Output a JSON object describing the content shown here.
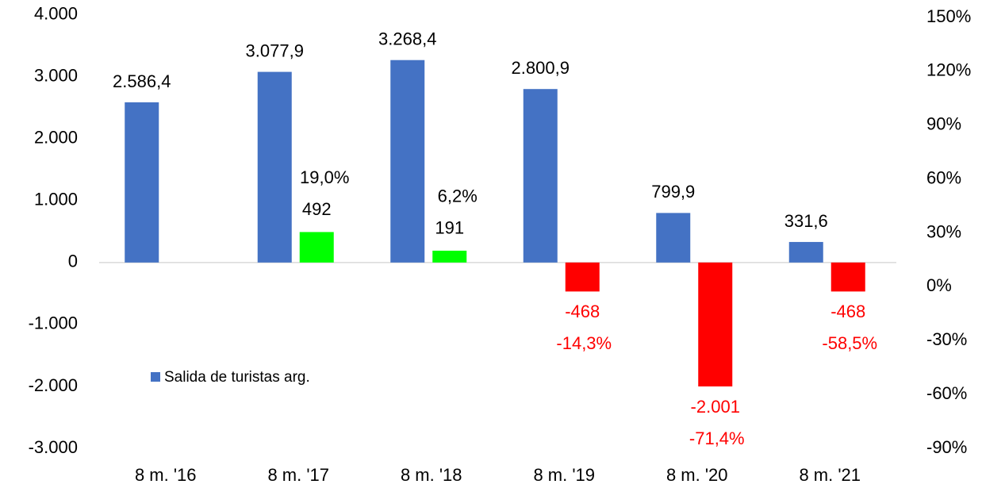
{
  "chart_data": {
    "type": "bar",
    "categories": [
      "8 m. '16",
      "8 m. '17",
      "8 m. '18",
      "8 m. '19",
      "8 m. '20",
      "8 m. '21"
    ],
    "series": [
      {
        "name": "Salida de turistas arg.",
        "color": "#4472c4",
        "values": [
          2586.4,
          3077.9,
          3268.4,
          2800.9,
          799.9,
          331.6
        ],
        "value_labels": [
          "2.586,4",
          "3.077,9",
          "3.268,4",
          "2.800,9",
          "799,9",
          "331,6"
        ]
      },
      {
        "colors": [
          null,
          "#00ff00",
          "#00ff00",
          "#ff0000",
          "#ff0000",
          "#ff0000"
        ],
        "values": [
          null,
          492,
          191,
          -468,
          -2001,
          -468
        ],
        "value_labels": [
          null,
          "492",
          "191",
          "-468",
          "-2.001",
          "-468"
        ],
        "pct_values": [
          null,
          19.0,
          6.2,
          -14.3,
          -71.4,
          -58.5
        ],
        "pct_labels": [
          null,
          "19,0%",
          "6,2%",
          "-14,3%",
          "-71,4%",
          "-58,5%"
        ]
      }
    ],
    "ylim": [
      -3000,
      4000
    ],
    "yticks": [
      {
        "value": 4000,
        "label": "4.000"
      },
      {
        "value": 3000,
        "label": "3.000"
      },
      {
        "value": 2000,
        "label": "2.000"
      },
      {
        "value": 1000,
        "label": "1.000"
      },
      0,
      {
        "value": -1000,
        "label": "-1.000"
      },
      {
        "value": -2000,
        "label": "-2.000"
      },
      {
        "value": -3000,
        "label": "-3.000"
      }
    ],
    "y2lim": [
      -90,
      150
    ],
    "y2ticks": [
      {
        "value": 150,
        "label": "150%"
      },
      {
        "value": 120,
        "label": "120%"
      },
      {
        "value": 90,
        "label": "90%"
      },
      {
        "value": 60,
        "label": "60%"
      },
      {
        "value": 30,
        "label": "30%"
      },
      {
        "value": 0,
        "label": "0%"
      },
      {
        "value": -30,
        "label": "-30%"
      },
      {
        "value": -60,
        "label": "-60%"
      },
      {
        "value": -90,
        "label": "-90%"
      }
    ],
    "legend": "lower left"
  }
}
